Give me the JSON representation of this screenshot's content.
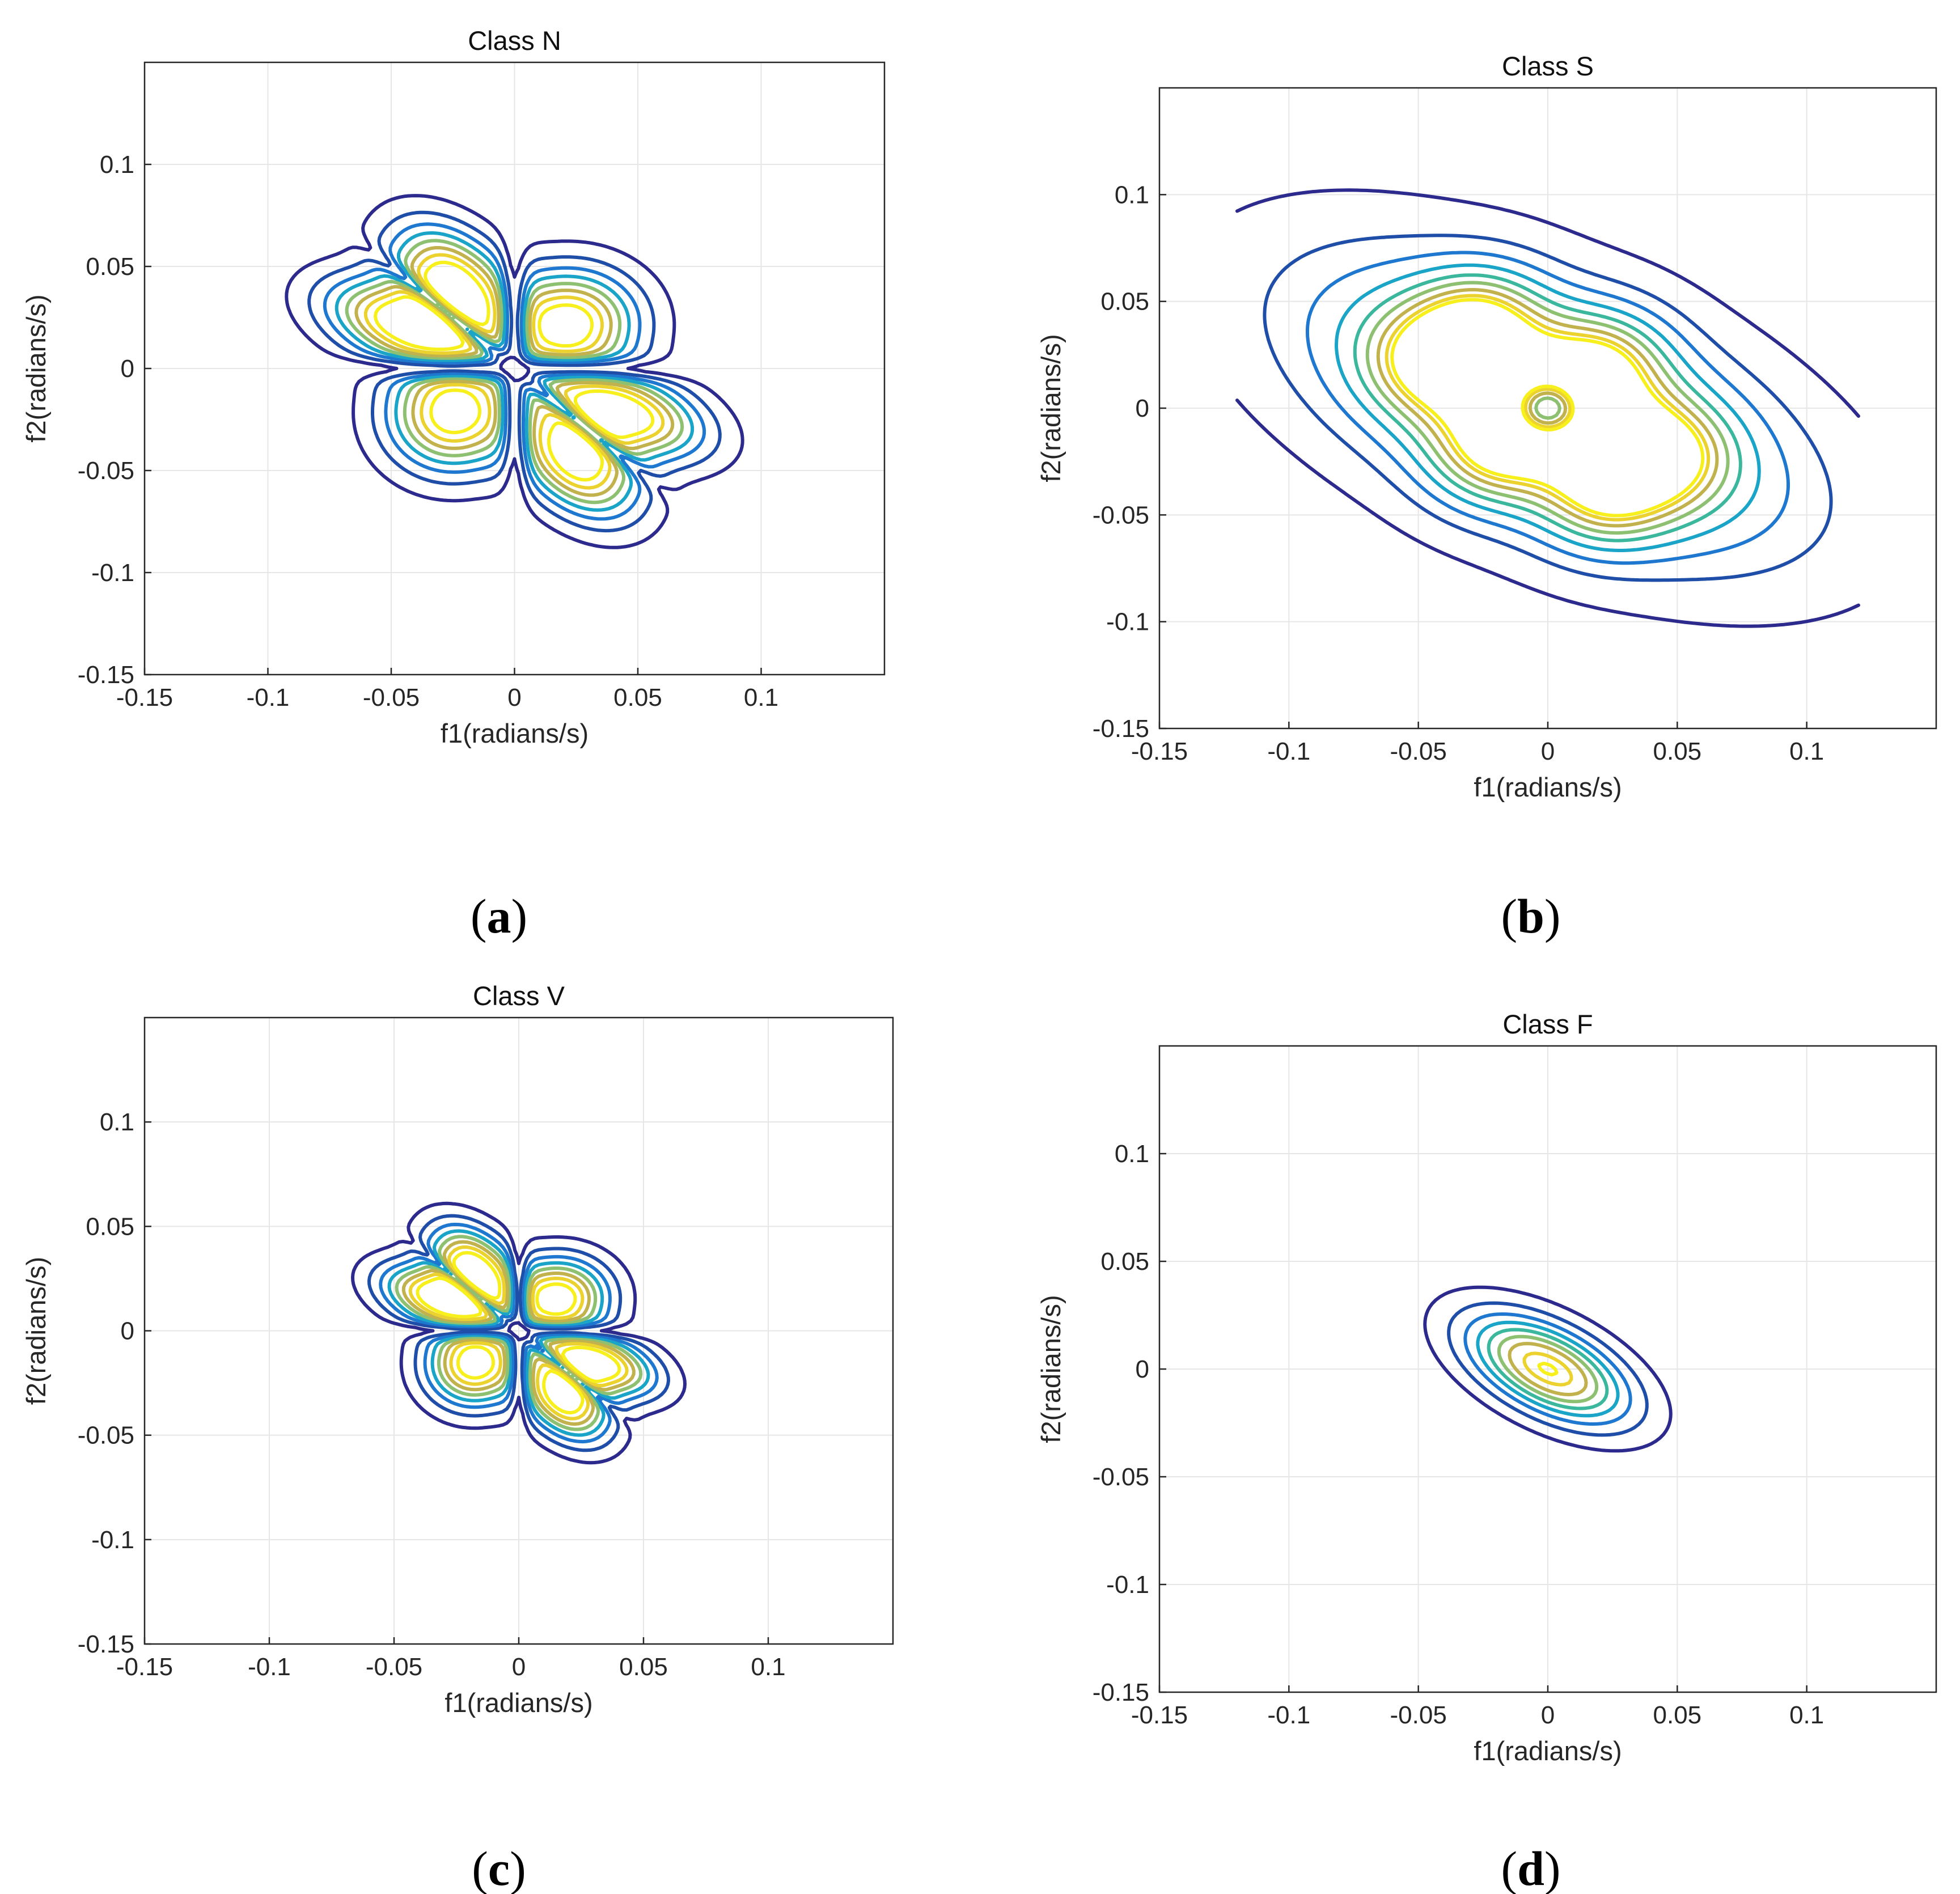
{
  "chart_data": [
    {
      "type": "contour",
      "panel": "a",
      "caption": "(a)",
      "title": "Class N",
      "xlabel": "f1(radians/s)",
      "ylabel": "f2(radians/s)",
      "xlim": [
        -0.15,
        0.15
      ],
      "ylim": [
        -0.15,
        0.15
      ],
      "xticks": [
        -0.15,
        -0.1,
        -0.05,
        0,
        0.05,
        0.1
      ],
      "yticks": [
        -0.15,
        -0.1,
        -0.05,
        0,
        0.05,
        0.1
      ],
      "xtick_labels": [
        "-0.15",
        "-0.1",
        "-0.05",
        "0",
        "0.05",
        "0.1"
      ],
      "ytick_labels": [
        "-0.15",
        "-0.1",
        "-0.05",
        "0",
        "0.05",
        "0.1"
      ],
      "grid": true,
      "pattern": "four-lobe",
      "lobe_centers": [
        [
          -0.025,
          0.042
        ],
        [
          -0.045,
          0.022
        ],
        [
          0.022,
          0.022
        ],
        [
          -0.025,
          -0.022
        ],
        [
          0.045,
          -0.022
        ],
        [
          0.025,
          -0.045
        ]
      ],
      "outer_extent": {
        "f1": [
          -0.1,
          0.1
        ],
        "f2": [
          -0.1,
          0.1
        ]
      },
      "levels": 8
    },
    {
      "type": "contour",
      "panel": "b",
      "caption": "(b)",
      "title": "Class S",
      "xlabel": "f1(radians/s)",
      "ylabel": "f2(radians/s)",
      "xlim": [
        -0.15,
        0.15
      ],
      "ylim": [
        -0.15,
        0.15
      ],
      "xticks": [
        -0.15,
        -0.1,
        -0.05,
        0,
        0.05,
        0.1
      ],
      "yticks": [
        -0.15,
        -0.1,
        -0.05,
        0,
        0.05,
        0.1
      ],
      "xtick_labels": [
        "-0.15",
        "-0.1",
        "-0.05",
        "0",
        "0.05",
        "0.1"
      ],
      "ytick_labels": [
        "-0.15",
        "-0.1",
        "-0.05",
        "0",
        "0.05",
        "0.1"
      ],
      "grid": true,
      "pattern": "elongated-ellipse",
      "peaks": [
        [
          -0.025,
          0.042
        ],
        [
          -0.045,
          0.022
        ],
        [
          0.022,
          0.022
        ],
        [
          -0.022,
          -0.022
        ],
        [
          0.045,
          -0.022
        ],
        [
          0.022,
          -0.042
        ]
      ],
      "center_minimum": [
        0,
        0
      ],
      "outer_extent": {
        "f1": [
          -0.105,
          0.107
        ],
        "f2": [
          -0.107,
          0.107
        ]
      },
      "levels": 9
    },
    {
      "type": "contour",
      "panel": "c",
      "caption": "(c)",
      "title": "Class V",
      "xlabel": "f1(radians/s)",
      "ylabel": "f2(radians/s)",
      "xlim": [
        -0.15,
        0.15
      ],
      "ylim": [
        -0.15,
        0.15
      ],
      "xticks": [
        -0.15,
        -0.1,
        -0.05,
        0,
        0.05,
        0.1
      ],
      "yticks": [
        -0.15,
        -0.1,
        -0.05,
        0,
        0.05,
        0.1
      ],
      "xtick_labels": [
        "-0.15",
        "-0.1",
        "-0.05",
        "0",
        "0.05",
        "0.1"
      ],
      "ytick_labels": [
        "-0.15",
        "-0.1",
        "-0.05",
        "0",
        "0.05",
        "0.1"
      ],
      "grid": true,
      "pattern": "four-lobe",
      "lobe_centers": [
        [
          -0.018,
          0.035
        ],
        [
          -0.035,
          0.018
        ],
        [
          0.016,
          0.016
        ],
        [
          -0.018,
          -0.018
        ],
        [
          0.035,
          -0.018
        ],
        [
          0.018,
          -0.035
        ]
      ],
      "outer_extent": {
        "f1": [
          -0.072,
          0.074
        ],
        "f2": [
          -0.072,
          0.072
        ]
      },
      "levels": 8
    },
    {
      "type": "contour",
      "panel": "d",
      "caption": "(d)",
      "title": "Class F",
      "xlabel": "f1(radians/s)",
      "ylabel": "f2(radians/s)",
      "xlim": [
        -0.15,
        0.15
      ],
      "ylim": [
        -0.15,
        0.15
      ],
      "xticks": [
        -0.15,
        -0.1,
        -0.05,
        0,
        0.05,
        0.1
      ],
      "yticks": [
        -0.15,
        -0.1,
        -0.05,
        0,
        0.05,
        0.1
      ],
      "xtick_labels": [
        "-0.15",
        "-0.1",
        "-0.05",
        "0",
        "0.05",
        "0.1"
      ],
      "ytick_labels": [
        "-0.15",
        "-0.1",
        "-0.05",
        "0",
        "0.05",
        "0.1"
      ],
      "grid": true,
      "pattern": "single-ellipse",
      "peak": [
        0,
        0
      ],
      "outer_extent": {
        "f1": [
          -0.045,
          0.048
        ],
        "f2": [
          -0.045,
          0.047
        ]
      },
      "levels": 9
    }
  ],
  "colors": {
    "levels": [
      "#2d2a8e",
      "#1f4ea8",
      "#1f78d0",
      "#1aa4c8",
      "#3ab79c",
      "#8dc070",
      "#c2b24e",
      "#ecd22e",
      "#f7f01c"
    ],
    "axis": "#262626",
    "grid": "#e6e6e6"
  }
}
